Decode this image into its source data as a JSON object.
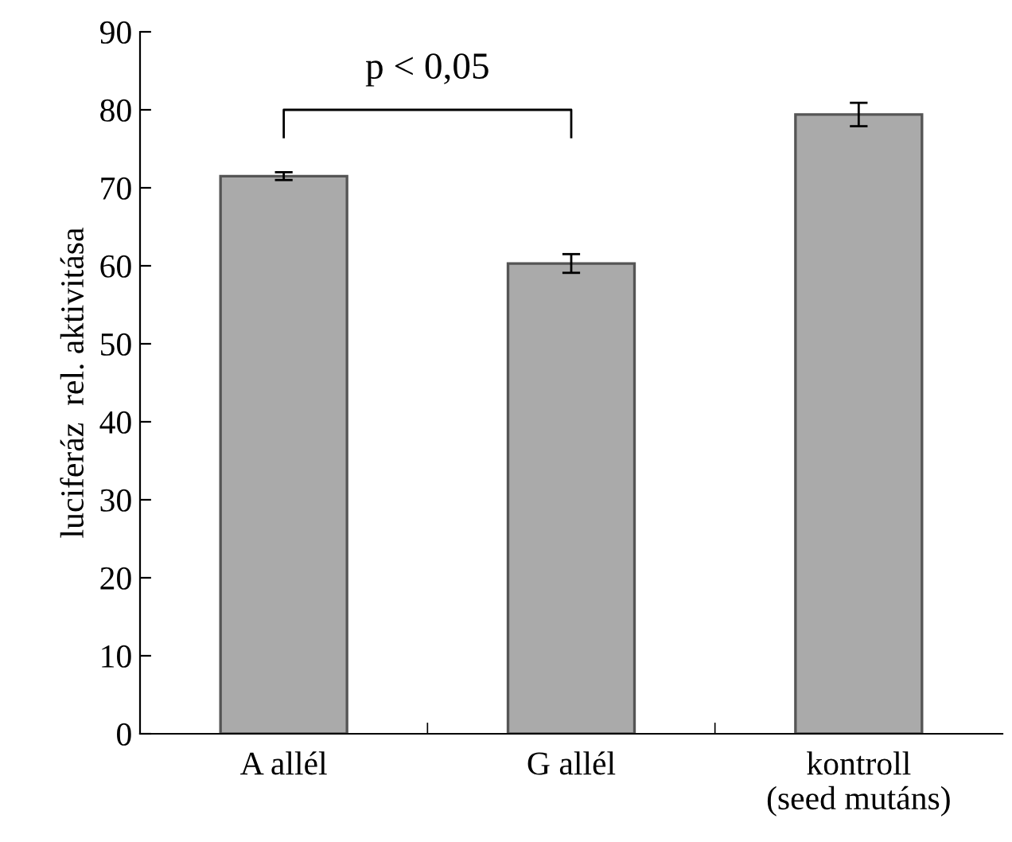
{
  "chart_data": {
    "type": "bar",
    "ylabel": "luciferáz  rel. aktivitása",
    "categories": [
      "A allél",
      "G allél",
      "kontroll\n(seed mutáns)"
    ],
    "values": [
      71.5,
      60.3,
      79.4
    ],
    "errors": [
      0.5,
      1.2,
      1.5
    ],
    "color": "#aaaaaa",
    "ylim": [
      0,
      90
    ],
    "yticks": [
      0,
      10,
      20,
      30,
      40,
      50,
      60,
      70,
      80,
      90
    ],
    "grid": false,
    "legend": false,
    "annotations": [
      "p < 0,05"
    ]
  }
}
